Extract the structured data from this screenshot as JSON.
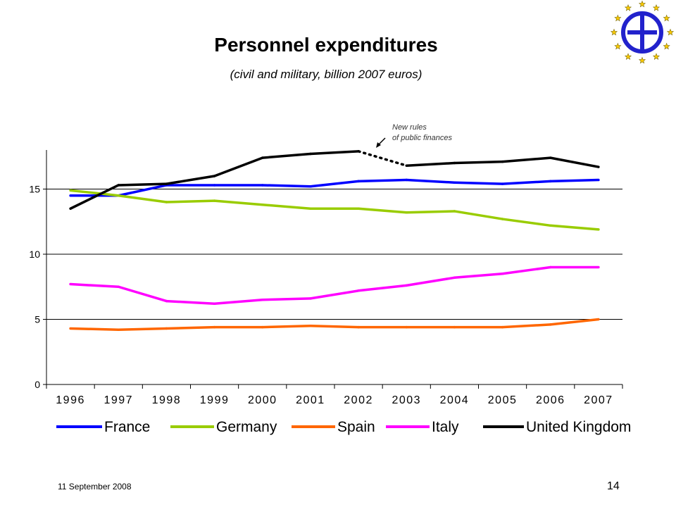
{
  "title": "Personnel expenditures",
  "subtitle": "(civil and military, billion 2007 euros)",
  "footer": {
    "date": "11 September 2008",
    "page": "14"
  },
  "logo_icon": "eu-star-circle-logo-icon",
  "annotation": {
    "line1": "New rules",
    "line2": "of public finances"
  },
  "chart_data": {
    "type": "line",
    "title": "Personnel expenditures",
    "subtitle": "(civil and military, billion 2007 euros)",
    "xlabel": "",
    "ylabel": "",
    "categories": [
      "1996",
      "1997",
      "1998",
      "1999",
      "2000",
      "2001",
      "2002",
      "2003",
      "2004",
      "2005",
      "2006",
      "2007"
    ],
    "ylim": [
      0,
      18
    ],
    "yticks": [
      0,
      5,
      10,
      15
    ],
    "grid": "horizontal",
    "legend": "bottom",
    "series": [
      {
        "name": "France",
        "color": "#0000ff",
        "values": [
          14.5,
          14.5,
          15.3,
          15.3,
          15.3,
          15.2,
          15.6,
          15.7,
          15.5,
          15.4,
          15.6,
          15.7
        ]
      },
      {
        "name": "Germany",
        "color": "#99cc00",
        "values": [
          14.9,
          14.5,
          14.0,
          14.1,
          13.8,
          13.5,
          13.5,
          13.2,
          13.3,
          12.7,
          12.2,
          11.9
        ]
      },
      {
        "name": "Spain",
        "color": "#ff6600",
        "values": [
          4.3,
          4.2,
          4.3,
          4.4,
          4.4,
          4.5,
          4.4,
          4.4,
          4.4,
          4.4,
          4.6,
          5.0
        ]
      },
      {
        "name": "Italy",
        "color": "#ff00ff",
        "values": [
          7.7,
          7.5,
          6.4,
          6.2,
          6.5,
          6.6,
          7.2,
          7.6,
          8.2,
          8.5,
          9.0,
          9.0
        ]
      },
      {
        "name": "United Kingdom",
        "color": "#000000",
        "values": [
          13.5,
          15.3,
          15.4,
          16.0,
          17.4,
          17.7,
          17.9,
          16.8,
          17.0,
          17.1,
          17.4,
          16.7
        ],
        "dashed_segments": [
          [
            6,
            7
          ]
        ]
      }
    ]
  }
}
